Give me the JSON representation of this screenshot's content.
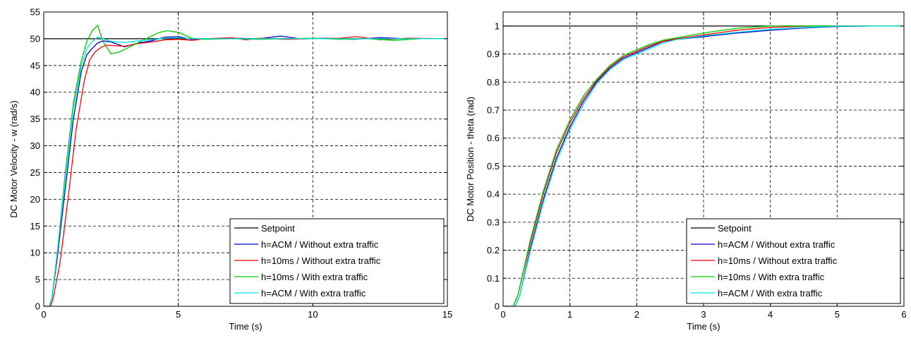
{
  "chart_data": [
    {
      "type": "line",
      "title": "",
      "xlabel": "Time (s)",
      "ylabel": "DC Motor Velocity - w (rad/s)",
      "xlim": [
        0,
        15
      ],
      "ylim": [
        0,
        55
      ],
      "xticks": [
        0,
        5,
        10,
        15
      ],
      "yticks": [
        0,
        5,
        10,
        15,
        20,
        25,
        30,
        35,
        40,
        45,
        50,
        55
      ],
      "grid": true,
      "legend_position": "bottom-right",
      "series": [
        {
          "name": "Setpoint",
          "color": "#000000",
          "x": [
            0,
            15
          ],
          "y": [
            50,
            50
          ]
        },
        {
          "name": "h=ACM / Without extra traffic",
          "color": "#0000cc",
          "x": [
            0,
            0.2,
            0.3,
            0.5,
            0.8,
            1.1,
            1.4,
            1.6,
            1.8,
            2.0,
            2.2,
            2.5,
            3.0,
            3.5,
            4.0,
            4.5,
            5.0,
            5.5,
            6.0,
            7.0,
            8.0,
            8.8,
            9.5,
            10.5,
            11.5,
            12.5,
            13.5,
            15
          ],
          "y": [
            0,
            0,
            1.5,
            9,
            22,
            35,
            44,
            47,
            48.2,
            49.2,
            49.6,
            49.4,
            48.5,
            49.2,
            49.6,
            50.3,
            50.4,
            49.9,
            50,
            50.1,
            50,
            50.5,
            50,
            50.1,
            49.9,
            50.2,
            50,
            50
          ]
        },
        {
          "name": "h=10ms / Without extra traffic",
          "color": "#ff0000",
          "x": [
            0,
            0.25,
            0.35,
            0.6,
            0.9,
            1.2,
            1.5,
            1.7,
            1.9,
            2.1,
            2.3,
            2.6,
            3.0,
            3.5,
            4.0,
            4.5,
            5.0,
            5.5,
            6.0,
            7.0,
            7.5,
            8.0,
            9.0,
            10.0,
            11.0,
            11.6,
            12.5,
            13.5,
            15
          ],
          "y": [
            0,
            0,
            1.5,
            8,
            20,
            33,
            42,
            46,
            47.5,
            48.3,
            48.8,
            48.7,
            48.6,
            49.1,
            49.4,
            49.8,
            49.9,
            49.7,
            50,
            50.2,
            49.8,
            50.1,
            49.9,
            50,
            50.1,
            50.4,
            49.8,
            50.1,
            50
          ]
        },
        {
          "name": "h=10ms / With extra traffic",
          "color": "#00cc00",
          "x": [
            0,
            0.2,
            0.3,
            0.5,
            0.8,
            1.1,
            1.4,
            1.6,
            1.8,
            2.0,
            2.2,
            2.5,
            2.8,
            3.2,
            3.6,
            4.0,
            4.3,
            4.6,
            5.0,
            5.5,
            6.0,
            7.0,
            8.0,
            9.0,
            10.0,
            11.0,
            12.0,
            13.0,
            14.0,
            15
          ],
          "y": [
            0,
            0,
            1.5,
            10,
            25,
            38,
            46,
            49.5,
            51.5,
            52.5,
            49.5,
            47.2,
            47.5,
            48.5,
            49.5,
            50.5,
            51.2,
            51.5,
            51.2,
            50.1,
            49.9,
            50,
            49.9,
            50,
            50.1,
            49.9,
            50,
            49.7,
            50,
            50
          ]
        },
        {
          "name": "h=ACM / With extra traffic",
          "color": "#00e5e5",
          "x": [
            0,
            0.2,
            0.3,
            0.5,
            0.8,
            1.1,
            1.4,
            1.6,
            1.8,
            2.0,
            2.2,
            2.5,
            3.0,
            3.5,
            4.0,
            4.5,
            5.0,
            5.5,
            6.0,
            7.0,
            8.0,
            9.0,
            10.0,
            11.0,
            12.0,
            13.0,
            14.0,
            15
          ],
          "y": [
            0,
            0,
            1.5,
            10,
            24,
            37,
            45,
            48.2,
            49.5,
            50.3,
            50,
            49.5,
            49.3,
            49.6,
            49.8,
            50.1,
            50.2,
            50,
            50,
            50,
            50,
            50,
            50,
            50,
            50,
            50,
            50,
            50
          ]
        }
      ]
    },
    {
      "type": "line",
      "title": "",
      "xlabel": "Time (s)",
      "ylabel": "DC Motor Position - theta (rad)",
      "xlim": [
        0,
        6
      ],
      "ylim": [
        0,
        1.05
      ],
      "xticks": [
        0,
        1,
        2,
        3,
        4,
        5,
        6
      ],
      "yticks": [
        0,
        0.1,
        0.2,
        0.3,
        0.4,
        0.5,
        0.6,
        0.7,
        0.8,
        0.9,
        1
      ],
      "grid": true,
      "legend_position": "bottom-right",
      "series": [
        {
          "name": "Setpoint",
          "color": "#000000",
          "x": [
            0,
            6
          ],
          "y": [
            1,
            1
          ]
        },
        {
          "name": "h=ACM / Without extra traffic",
          "color": "#0000cc",
          "x": [
            0,
            0.18,
            0.25,
            0.4,
            0.6,
            0.8,
            1.0,
            1.2,
            1.4,
            1.6,
            1.8,
            2.0,
            2.2,
            2.4,
            2.6,
            3.0,
            3.5,
            4.0,
            4.5,
            5.0,
            5.5,
            6.0
          ],
          "y": [
            0,
            0,
            0.04,
            0.2,
            0.38,
            0.53,
            0.64,
            0.73,
            0.8,
            0.85,
            0.885,
            0.905,
            0.925,
            0.945,
            0.952,
            0.962,
            0.975,
            0.985,
            0.993,
            0.998,
            1,
            1
          ]
        },
        {
          "name": "h=10ms / Without extra traffic",
          "color": "#ff0000",
          "x": [
            0,
            0.15,
            0.22,
            0.4,
            0.6,
            0.8,
            1.0,
            1.2,
            1.4,
            1.6,
            1.8,
            2.0,
            2.2,
            2.4,
            2.6,
            3.0,
            3.5,
            4.0,
            4.5,
            5.0,
            6.0
          ],
          "y": [
            0,
            0,
            0.04,
            0.22,
            0.4,
            0.55,
            0.655,
            0.74,
            0.805,
            0.855,
            0.89,
            0.91,
            0.93,
            0.946,
            0.955,
            0.968,
            0.985,
            0.995,
            0.999,
            1,
            1
          ]
        },
        {
          "name": "h=10ms / With extra traffic",
          "color": "#00cc00",
          "x": [
            0,
            0.15,
            0.22,
            0.4,
            0.6,
            0.8,
            1.0,
            1.2,
            1.4,
            1.6,
            1.8,
            2.0,
            2.2,
            2.4,
            2.6,
            3.0,
            3.5,
            4.0,
            4.5,
            5.0,
            6.0
          ],
          "y": [
            0,
            0,
            0.04,
            0.23,
            0.41,
            0.56,
            0.665,
            0.75,
            0.81,
            0.86,
            0.895,
            0.915,
            0.935,
            0.95,
            0.958,
            0.975,
            0.992,
            1,
            1,
            1,
            1
          ]
        },
        {
          "name": "h=ACM / With extra traffic",
          "color": "#00e5e5",
          "x": [
            0,
            0.18,
            0.25,
            0.4,
            0.6,
            0.8,
            1.0,
            1.2,
            1.4,
            1.6,
            1.8,
            2.0,
            2.2,
            2.4,
            2.6,
            3.0,
            3.5,
            4.0,
            4.5,
            5.0,
            5.5,
            6.0
          ],
          "y": [
            0,
            0,
            0.04,
            0.19,
            0.37,
            0.52,
            0.63,
            0.72,
            0.795,
            0.845,
            0.88,
            0.9,
            0.92,
            0.94,
            0.952,
            0.965,
            0.978,
            0.988,
            0.995,
            0.999,
            1,
            1
          ]
        }
      ]
    }
  ]
}
